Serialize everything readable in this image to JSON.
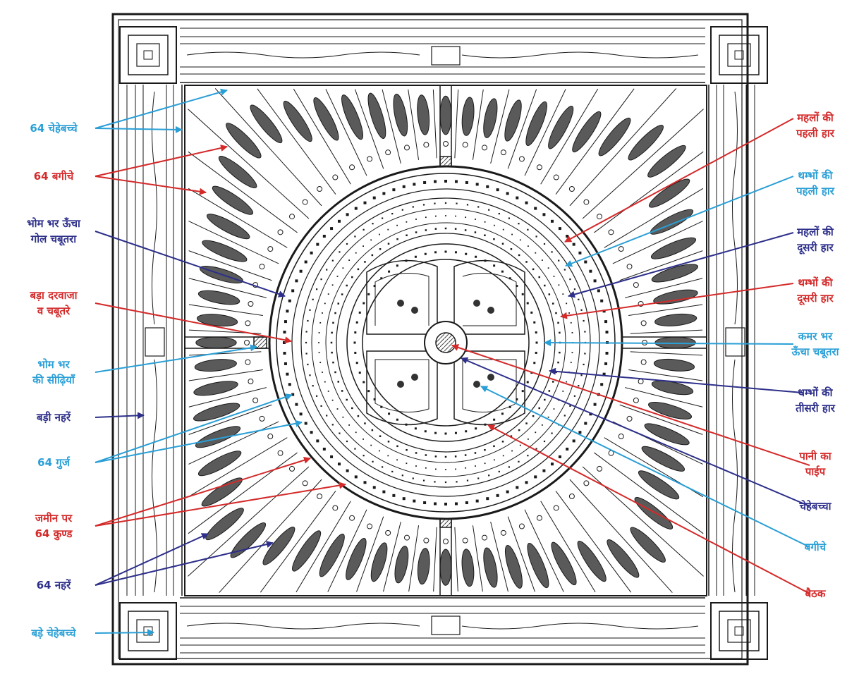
{
  "colors": {
    "red": "#d42a2a",
    "blue": "#2a9fd6",
    "navy": "#2d2f8a",
    "ink": "#1a1a1a"
  },
  "labels": {
    "left": [
      {
        "id": "chehebachhe64",
        "lines": [
          "64 चेहेबच्चे"
        ],
        "color": "blue"
      },
      {
        "id": "bagiche64",
        "lines": [
          "64 बगीचे"
        ],
        "color": "red"
      },
      {
        "id": "bhom-chabutra",
        "lines": [
          "भोम भर ऊँचा",
          "गोल चबूतरा"
        ],
        "color": "navy"
      },
      {
        "id": "bada-darwaja",
        "lines": [
          "बड़ा दरवाजा",
          "व चबूतरे"
        ],
        "color": "red"
      },
      {
        "id": "bhom-sidhiyan",
        "lines": [
          "भोम भर",
          "की सीढ़ियाँ"
        ],
        "color": "blue"
      },
      {
        "id": "badi-nahre",
        "lines": [
          "बड़ी नहरें"
        ],
        "color": "navy"
      },
      {
        "id": "gurj64",
        "lines": [
          "64 गुर्ज"
        ],
        "color": "blue"
      },
      {
        "id": "kund64",
        "lines": [
          "जमीन पर",
          "64 कुण्ड"
        ],
        "color": "red"
      },
      {
        "id": "nahre64",
        "lines": [
          "64 नहरें"
        ],
        "color": "navy"
      },
      {
        "id": "bade-chehebachhe",
        "lines": [
          "बड़े चेहेबच्चे"
        ],
        "color": "blue"
      }
    ],
    "right": [
      {
        "id": "mahal-pehli",
        "lines": [
          "महलों की",
          "पहली हार"
        ],
        "color": "red"
      },
      {
        "id": "thambh-pehli",
        "lines": [
          "थम्भों की",
          "पहली हार"
        ],
        "color": "blue"
      },
      {
        "id": "mahal-dusri",
        "lines": [
          "महलों की",
          "दूसरी हार"
        ],
        "color": "navy"
      },
      {
        "id": "thambh-dusri",
        "lines": [
          "थम्भों की",
          "दूसरी हार"
        ],
        "color": "red"
      },
      {
        "id": "kamar-chabutra",
        "lines": [
          "कमर भर",
          "ऊँचा चबूतरा"
        ],
        "color": "blue"
      },
      {
        "id": "thambh-tisri",
        "lines": [
          "थम्भों की",
          "तीसरी हार"
        ],
        "color": "navy"
      },
      {
        "id": "pani-pipe",
        "lines": [
          "पानी का",
          "पाईप"
        ],
        "color": "red"
      },
      {
        "id": "chehebachha",
        "lines": [
          "चेहेबच्चा"
        ],
        "color": "navy"
      },
      {
        "id": "bagiche",
        "lines": [
          "बगीचे"
        ],
        "color": "blue"
      },
      {
        "id": "baithak",
        "lines": [
          "बैठक"
        ],
        "color": "red"
      }
    ]
  }
}
